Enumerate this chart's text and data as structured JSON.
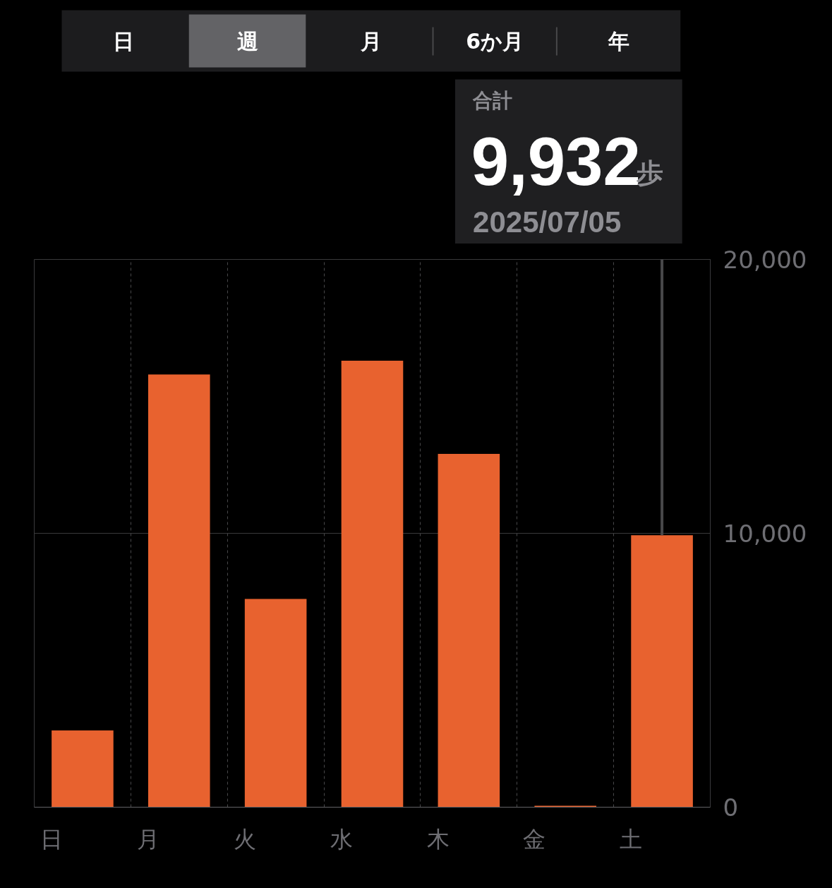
{
  "chart_data": {
    "type": "bar",
    "categories": [
      "日",
      "月",
      "火",
      "水",
      "木",
      "金",
      "土"
    ],
    "values": [
      2800,
      15800,
      7600,
      16300,
      12900,
      50,
      9932
    ],
    "color": "#e8622f",
    "ylim": [
      0,
      20000
    ],
    "yticks": [
      0,
      {
        "value": 10000,
        "label": "10,000"
      },
      {
        "value": 20000,
        "label": "20,000"
      }
    ],
    "grid": true,
    "annotations": [
      "日",
      "週",
      "月",
      "6か月",
      "年",
      "合計",
      "9,932",
      "歩",
      "2025/07/05"
    ]
  }
}
